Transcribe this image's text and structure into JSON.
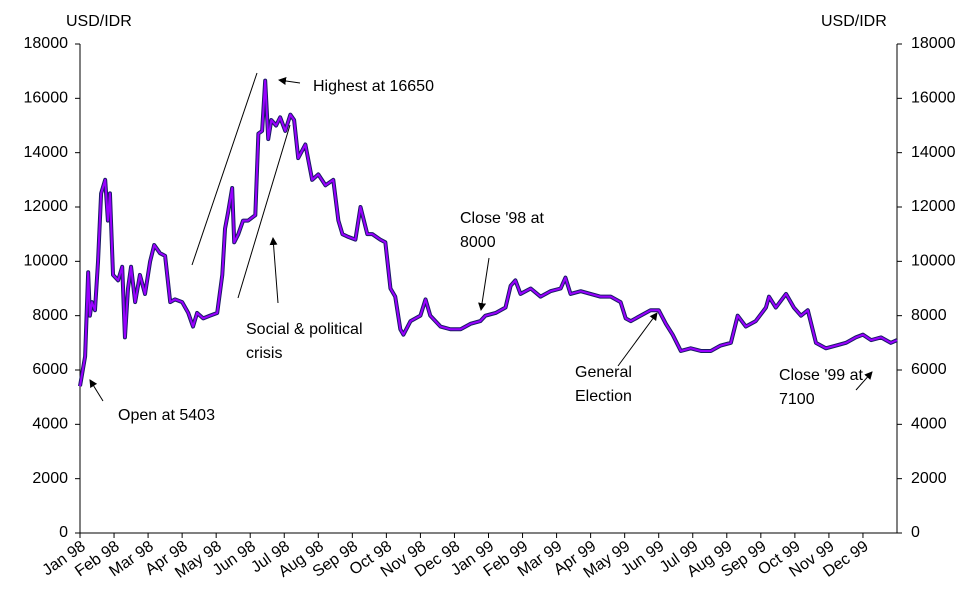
{
  "chart_data": {
    "type": "line",
    "y_label": "USD/IDR",
    "y2_label": "USD/IDR",
    "xlim": [
      0,
      24
    ],
    "xticks": [
      {
        "value": 0,
        "label": "Jan 98"
      },
      {
        "value": 1,
        "label": "Feb 98"
      },
      {
        "value": 2,
        "label": "Mar 98"
      },
      {
        "value": 3,
        "label": "Apr 98"
      },
      {
        "value": 4,
        "label": "May 98"
      },
      {
        "value": 5,
        "label": "Jun 98"
      },
      {
        "value": 6,
        "label": "Jul 98"
      },
      {
        "value": 7,
        "label": "Aug 98"
      },
      {
        "value": 8,
        "label": "Sep 98"
      },
      {
        "value": 9,
        "label": "Oct 98"
      },
      {
        "value": 10,
        "label": "Nov 98"
      },
      {
        "value": 11,
        "label": "Dec 98"
      },
      {
        "value": 12,
        "label": "Jan 99"
      },
      {
        "value": 13,
        "label": "Feb 99"
      },
      {
        "value": 14,
        "label": "Mar 99"
      },
      {
        "value": 15,
        "label": "Apr 99"
      },
      {
        "value": 16,
        "label": "May 99"
      },
      {
        "value": 17,
        "label": "Jun 99"
      },
      {
        "value": 18,
        "label": "Jul 99"
      },
      {
        "value": 19,
        "label": "Aug 99"
      },
      {
        "value": 20,
        "label": "Sep 99"
      },
      {
        "value": 21,
        "label": "Oct 99"
      },
      {
        "value": 22,
        "label": "Nov 99"
      },
      {
        "value": 23,
        "label": "Dec 99"
      }
    ],
    "ylim": [
      0,
      18000
    ],
    "yticks": [
      0,
      2000,
      4000,
      6000,
      8000,
      10000,
      12000,
      14000,
      16000,
      18000
    ],
    "y2lim": [
      0,
      18000
    ],
    "y2ticks": [
      0,
      2000,
      4000,
      6000,
      8000,
      10000,
      12000,
      14000,
      16000,
      18000
    ],
    "grid": false,
    "x": [
      0,
      0.15,
      0.24,
      0.29,
      0.35,
      0.44,
      0.53,
      0.62,
      0.74,
      0.82,
      0.88,
      0.97,
      1.12,
      1.24,
      1.32,
      1.41,
      1.5,
      1.62,
      1.76,
      1.91,
      2.06,
      2.18,
      2.35,
      2.5,
      2.65,
      2.79,
      3.0,
      3.18,
      3.32,
      3.44,
      3.62,
      3.82,
      4.03,
      4.18,
      4.26,
      4.35,
      4.47,
      4.53,
      4.65,
      4.79,
      4.94,
      5.15,
      5.24,
      5.35,
      5.44,
      5.53,
      5.62,
      5.76,
      5.88,
      6.03,
      6.18,
      6.29,
      6.41,
      6.62,
      6.82,
      7.0,
      7.21,
      7.44,
      7.59,
      7.71,
      7.88,
      8.09,
      8.24,
      8.44,
      8.59,
      8.82,
      8.97,
      9.12,
      9.26,
      9.41,
      9.5,
      9.71,
      10.0,
      10.15,
      10.29,
      10.59,
      10.88,
      11.18,
      11.47,
      11.76,
      11.91,
      12.21,
      12.5,
      12.65,
      12.79,
      12.94,
      13.24,
      13.53,
      13.82,
      14.12,
      14.26,
      14.41,
      14.71,
      15.0,
      15.29,
      15.59,
      15.88,
      16.03,
      16.18,
      16.47,
      16.76,
      17.0,
      17.21,
      17.41,
      17.65,
      17.94,
      18.24,
      18.53,
      18.82,
      19.12,
      19.32,
      19.56,
      19.85,
      20.15,
      20.24,
      20.44,
      20.74,
      20.97,
      21.18,
      21.38,
      21.62,
      21.91,
      22.21,
      22.5,
      22.79,
      23.0,
      23.24,
      23.53,
      23.82,
      24.0
    ],
    "series": [
      {
        "color": "#9900ff",
        "edge": "#1a1a66",
        "values": [
          5403,
          6500,
          9600,
          8000,
          8500,
          8200,
          10000,
          12500,
          13000,
          11500,
          12500,
          9500,
          9300,
          9800,
          7200,
          9000,
          9800,
          8500,
          9500,
          8800,
          10000,
          10600,
          10300,
          10200,
          8500,
          8600,
          8500,
          8100,
          7600,
          8100,
          7900,
          8000,
          8100,
          9500,
          11200,
          11800,
          12700,
          10700,
          11000,
          11500,
          11500,
          11700,
          14700,
          14800,
          16650,
          14500,
          15200,
          15000,
          15300,
          14800,
          15400,
          15200,
          13800,
          14300,
          13000,
          13200,
          12800,
          13000,
          11500,
          11000,
          10900,
          10800,
          12000,
          11000,
          11000,
          10800,
          10700,
          9000,
          8700,
          7500,
          7300,
          7800,
          8000,
          8600,
          8000,
          7600,
          7500,
          7500,
          7700,
          7800,
          8000,
          8100,
          8300,
          9100,
          9300,
          8800,
          9000,
          8700,
          8900,
          9000,
          9400,
          8800,
          8900,
          8800,
          8700,
          8700,
          8500,
          7900,
          7800,
          8000,
          8200,
          8200,
          7700,
          7300,
          6700,
          6800,
          6700,
          6700,
          6900,
          7000,
          8000,
          7600,
          7800,
          8300,
          8700,
          8300,
          8800,
          8300,
          8000,
          8200,
          7000,
          6800,
          6900,
          7000,
          7200,
          7300,
          7100,
          7200,
          7000,
          7100
        ]
      }
    ],
    "annotations": [
      {
        "text": [
          "Open at 5403"
        ]
      },
      {
        "text": [
          "Highest at 16650"
        ]
      },
      {
        "text": [
          "Social & political",
          "crisis"
        ]
      },
      {
        "text": [
          "Close '98 at",
          "8000"
        ]
      },
      {
        "text": [
          "General",
          "Election"
        ]
      },
      {
        "text": [
          "Close '99 at",
          "7100"
        ]
      }
    ]
  }
}
